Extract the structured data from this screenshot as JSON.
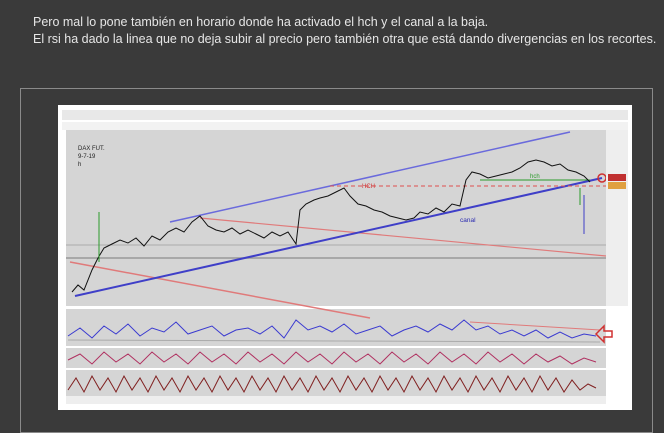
{
  "post": {
    "paragraphs": [
      "Pero mal lo pone también en horario donde ha activado el hch y el canal a la baja.",
      "El rsi ha dado la linea que no deja subir al precio pero también otra que está dando divergencias en los recortes."
    ]
  },
  "chart_image": {
    "labels": [
      "DAX FUT.",
      "9-7-19",
      "h"
    ],
    "annotations": [
      "HCH",
      "hch",
      "canal"
    ]
  }
}
